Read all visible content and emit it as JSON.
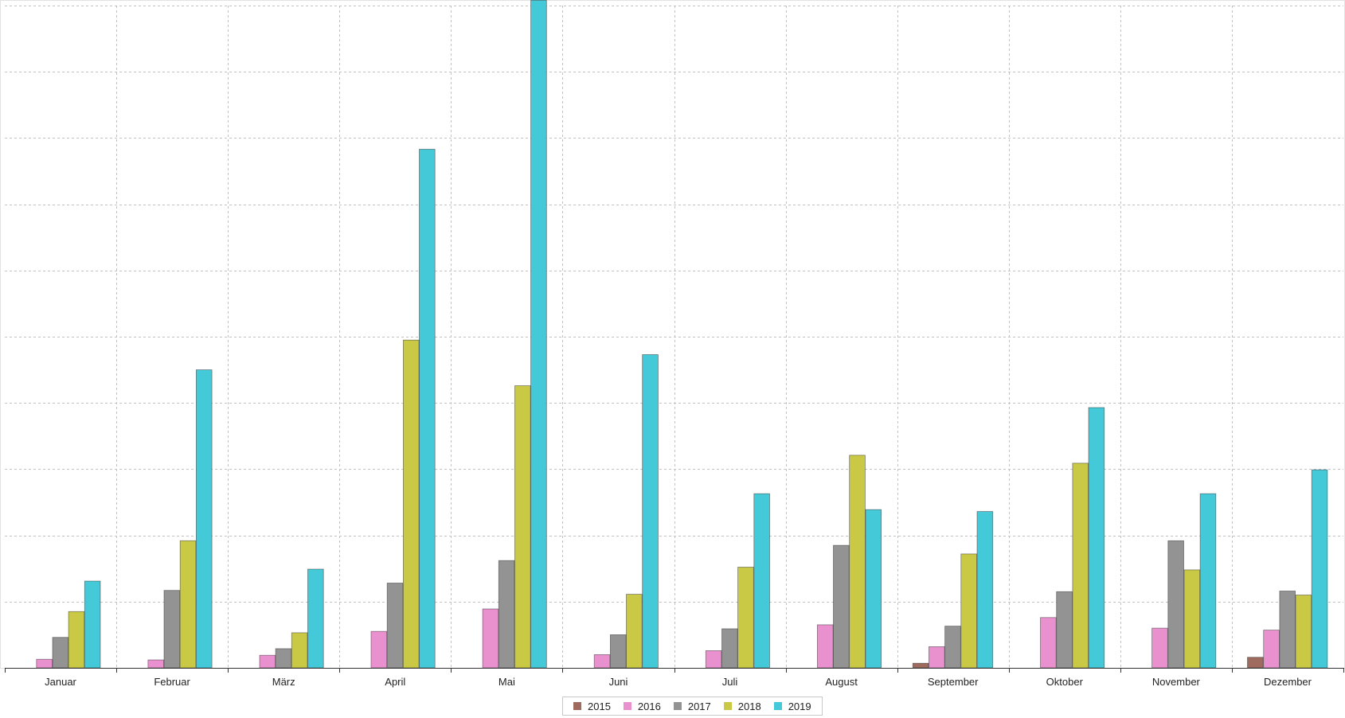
{
  "chart_data": {
    "type": "bar",
    "categories": [
      "Januar",
      "Februar",
      "März",
      "April",
      "Mai",
      "Juni",
      "Juli",
      "August",
      "September",
      "Oktober",
      "November",
      "Dezember"
    ],
    "ylim": [
      0,
      10
    ],
    "y_gridlines": 10,
    "grid": true,
    "legend_position": "bottom-center",
    "series": [
      {
        "name": "2015",
        "color": "#9e6b5e",
        "values": [
          0,
          0,
          0,
          0,
          0,
          0,
          0,
          0,
          0.07,
          0,
          0,
          0.16
        ]
      },
      {
        "name": "2016",
        "color": "#e991cf",
        "values": [
          0.13,
          0.12,
          0.19,
          0.55,
          0.89,
          0.2,
          0.26,
          0.65,
          0.32,
          0.76,
          0.6,
          0.57
        ]
      },
      {
        "name": "2017",
        "color": "#939393",
        "values": [
          0.46,
          1.17,
          0.29,
          1.28,
          1.62,
          0.5,
          0.59,
          1.85,
          0.63,
          1.15,
          1.92,
          1.16
        ]
      },
      {
        "name": "2018",
        "color": "#c9c945",
        "values": [
          0.85,
          1.92,
          0.53,
          4.95,
          4.26,
          1.11,
          1.52,
          3.21,
          1.72,
          3.09,
          1.48,
          1.1
        ]
      },
      {
        "name": "2019",
        "color": "#43c9d8",
        "values": [
          1.31,
          4.5,
          1.49,
          7.83,
          10.08,
          4.73,
          2.63,
          2.39,
          2.36,
          3.93,
          2.63,
          2.99
        ]
      }
    ]
  }
}
